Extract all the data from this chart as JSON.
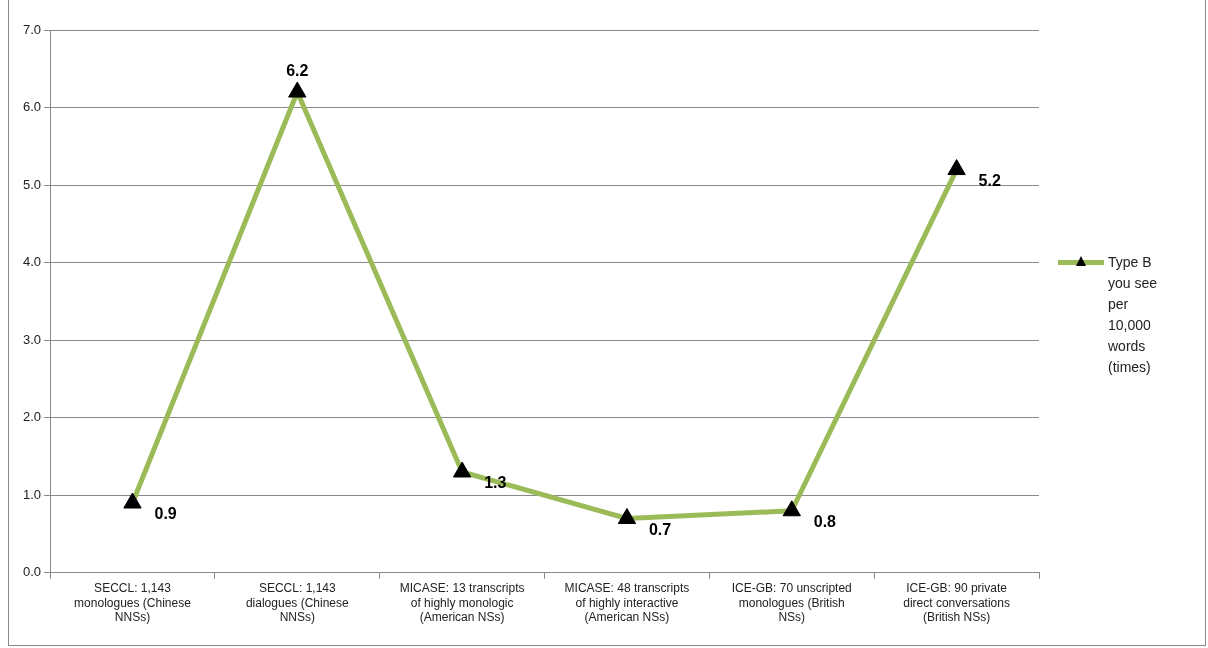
{
  "chart_data": {
    "type": "line",
    "categories": [
      "SECCL: 1,143 monologues (Chinese NNSs)",
      "SECCL: 1,143 dialogues (Chinese NNSs)",
      "MICASE: 13 transcripts of highly monologic (American NSs)",
      "MICASE: 48 transcripts of highly interactive (American NSs)",
      "ICE-GB: 70 unscripted monologues (British NSs)",
      "ICE-GB: 90 private direct conversations (British NSs)"
    ],
    "series": [
      {
        "name": "Type B you see per 10,000 words (times)",
        "color": "#9bbb59",
        "values": [
          0.9,
          6.2,
          1.3,
          0.7,
          0.8,
          5.2
        ]
      }
    ],
    "ylim": [
      0,
      7
    ],
    "yticks": [
      {
        "value": 0,
        "label": "0.0"
      },
      {
        "value": 1,
        "label": "1.0"
      },
      {
        "value": 2,
        "label": "2.0"
      },
      {
        "value": 3,
        "label": "3.0"
      },
      {
        "value": 4,
        "label": "4.0"
      },
      {
        "value": 5,
        "label": "5.0"
      },
      {
        "value": 6,
        "label": "6.0"
      },
      {
        "value": 7,
        "label": "7.0"
      }
    ],
    "grid": "y",
    "legend": "right",
    "marker": "triangle",
    "line_style": "solid",
    "data_labels": true
  }
}
